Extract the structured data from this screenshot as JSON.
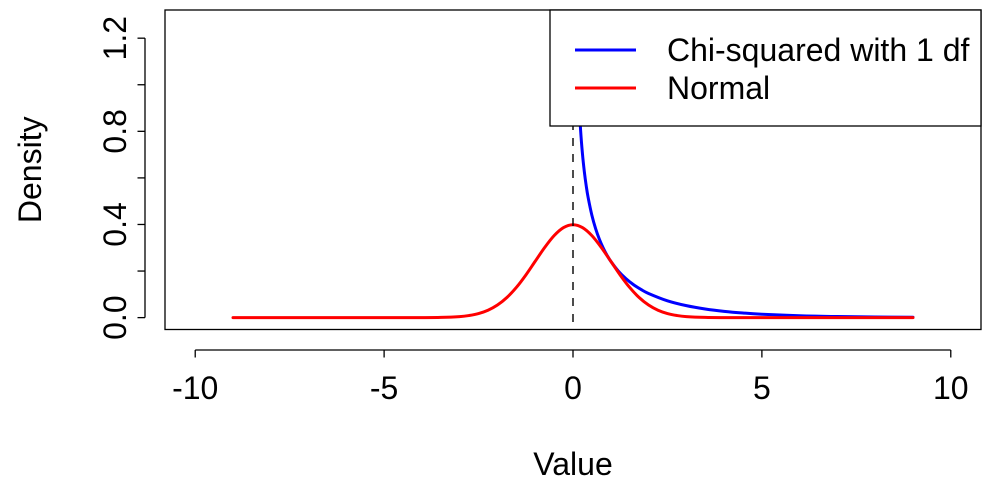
{
  "chart_data": {
    "type": "line",
    "title": "",
    "xlabel": "Value",
    "ylabel": "Density",
    "xlim": [
      -10.8,
      10.8
    ],
    "ylim": [
      -0.051,
      1.321
    ],
    "grid": false,
    "x_ticks": [
      -10,
      -5,
      0,
      5,
      10
    ],
    "x_tick_labels": [
      {
        "value": -10,
        "label": "-10"
      },
      {
        "value": -5,
        "label": "-5"
      },
      {
        "value": 0,
        "label": "0"
      },
      {
        "value": 5,
        "label": "5"
      },
      {
        "value": 10,
        "label": "10"
      }
    ],
    "y_ticks": [
      0,
      0.2,
      0.4,
      0.6,
      0.8,
      1.0,
      1.2
    ],
    "y_tick_labels": [
      {
        "value": 0,
        "label": "0.0"
      },
      {
        "value": 0.4,
        "label": "0.4"
      },
      {
        "value": 0.8,
        "label": "0.8"
      },
      {
        "value": 1.2,
        "label": "1.2"
      }
    ],
    "legend": {
      "position": "top-right"
    },
    "series": [
      {
        "name": "Chi-squared with 1 df",
        "color": "#0000FF",
        "x": [
          0.1,
          0.12,
          0.15,
          0.2,
          0.25,
          0.3,
          0.35,
          0.4,
          0.5,
          0.6,
          0.7,
          0.8,
          0.9,
          1,
          1.2,
          1.4,
          1.6,
          1.8,
          2,
          2.5,
          3,
          3.5,
          4,
          4.5,
          5,
          6,
          7,
          8,
          9
        ],
        "y": [
          1.2,
          1.0846,
          0.9556,
          0.8072,
          0.7041,
          0.6269,
          0.5661,
          0.5164,
          0.4394,
          0.3815,
          0.336,
          0.299,
          0.2681,
          0.242,
          0.1999,
          0.1674,
          0.1417,
          0.1209,
          0.1038,
          0.0723,
          0.0514,
          0.0371,
          0.027,
          0.0198,
          0.0146,
          0.0081,
          0.0046,
          0.0026,
          0.0015
        ]
      },
      {
        "name": "Normal",
        "color": "#FF0000",
        "x": [
          -9,
          -8,
          -7,
          -6,
          -5,
          -4.5,
          -4,
          -3.5,
          -3,
          -2.75,
          -2.5,
          -2.25,
          -2,
          -1.75,
          -1.5,
          -1.25,
          -1,
          -0.75,
          -0.5,
          -0.25,
          0,
          0.25,
          0.5,
          0.75,
          1,
          1.25,
          1.5,
          1.75,
          2,
          2.25,
          2.5,
          2.75,
          3,
          3.5,
          4,
          4.5,
          5,
          6,
          7,
          8,
          9
        ],
        "y": [
          0,
          0,
          0,
          0,
          0,
          0,
          0.0001,
          0.0009,
          0.0044,
          0.0091,
          0.0175,
          0.0317,
          0.054,
          0.0863,
          0.1295,
          0.1826,
          0.242,
          0.3011,
          0.3521,
          0.3867,
          0.3989,
          0.3867,
          0.3521,
          0.3011,
          0.242,
          0.1826,
          0.1295,
          0.0863,
          0.054,
          0.0317,
          0.0175,
          0.0091,
          0.0044,
          0.0009,
          0.0001,
          0,
          0,
          0,
          0,
          0,
          0
        ]
      }
    ],
    "reference_lines": [
      {
        "axis": "x",
        "value": 0,
        "style": "dashed",
        "color": "#000000"
      }
    ]
  }
}
